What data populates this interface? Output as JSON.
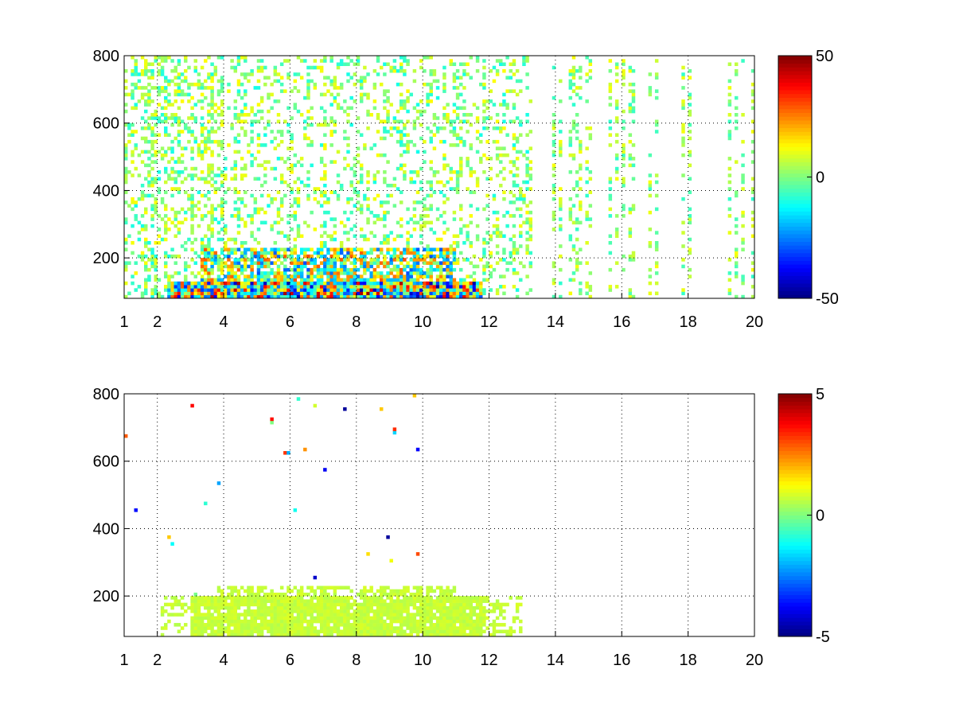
{
  "chart_data": [
    {
      "type": "heatmap",
      "title": "",
      "xlabel": "",
      "ylabel": "",
      "x_ticks": [
        1,
        2,
        4,
        6,
        8,
        10,
        12,
        14,
        16,
        18,
        20
      ],
      "x_tick_labels": [
        "1",
        "2",
        "4",
        "6",
        "8",
        "10",
        "12",
        "14",
        "16",
        "18",
        "20"
      ],
      "xlim": [
        1,
        20
      ],
      "y_ticks": [
        200,
        400,
        600,
        800
      ],
      "y_tick_labels": [
        "200",
        "400",
        "600",
        "800"
      ],
      "ylim": [
        80,
        800
      ],
      "grid": true,
      "colormap": "jet",
      "clim": [
        -50,
        50
      ],
      "colorbar_ticks": [
        -50,
        0,
        50
      ],
      "colorbar_tick_labels": [
        "-50",
        "0",
        "50"
      ],
      "data_regions": [
        {
          "x_range": [
            2.2,
            11.8
          ],
          "y_range": [
            80,
            130
          ],
          "value_range": [
            -50,
            50
          ],
          "note_value": "strong"
        },
        {
          "x_range": [
            3.2,
            11.0
          ],
          "y_range": [
            130,
            230
          ],
          "value_range": [
            -30,
            30
          ]
        },
        {
          "x_range": [
            1,
            13.2
          ],
          "y_range": [
            80,
            800
          ],
          "value_range": [
            -12,
            12
          ]
        },
        {
          "x_range": [
            13.2,
            20
          ],
          "y_range": [
            80,
            800
          ],
          "value_range": [
            -8,
            12
          ]
        }
      ]
    },
    {
      "type": "heatmap",
      "title": "",
      "xlabel": "",
      "ylabel": "",
      "x_ticks": [
        1,
        2,
        4,
        6,
        8,
        10,
        12,
        14,
        16,
        18,
        20
      ],
      "x_tick_labels": [
        "1",
        "2",
        "4",
        "6",
        "8",
        "10",
        "12",
        "14",
        "16",
        "18",
        "20"
      ],
      "xlim": [
        1,
        20
      ],
      "y_ticks": [
        200,
        400,
        600,
        800
      ],
      "y_tick_labels": [
        "200",
        "400",
        "600",
        "800"
      ],
      "ylim": [
        80,
        800
      ],
      "grid": true,
      "colormap": "jet",
      "clim": [
        -5,
        5
      ],
      "colorbar_ticks": [
        -5,
        0,
        5
      ],
      "colorbar_tick_labels": [
        "-5",
        "0",
        "5"
      ],
      "data_regions": [
        {
          "x_range": [
            2.0,
            13.0
          ],
          "y_range": [
            80,
            200
          ],
          "value_range": [
            0.5,
            1
          ]
        },
        {
          "x_range": [
            3.8,
            11.0
          ],
          "y_range": [
            200,
            230
          ],
          "value_range": [
            0.5,
            1
          ]
        },
        {
          "x_range": [
            1,
            10
          ],
          "y_range": [
            80,
            800
          ],
          "value_range": [
            -5,
            5
          ],
          "note_value": "sparse outliers"
        }
      ]
    }
  ]
}
